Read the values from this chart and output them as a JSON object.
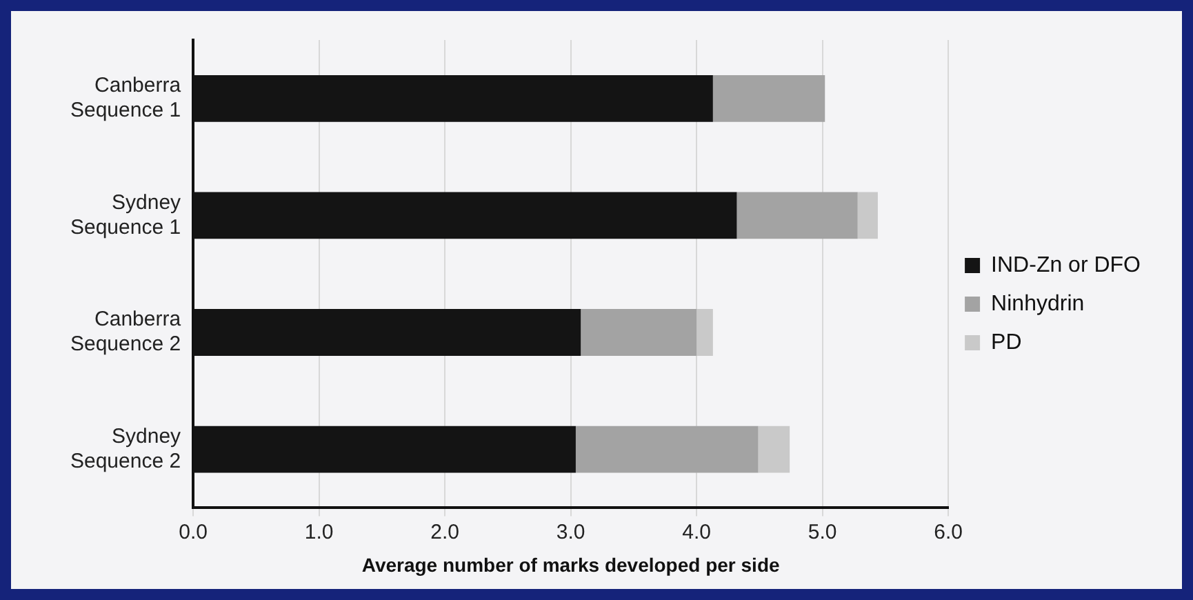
{
  "chart_data": {
    "type": "bar",
    "orientation": "horizontal",
    "stacked": true,
    "xlabel": "Average number of marks developed per side",
    "categories": [
      "Canberra Sequence 1",
      "Sydney Sequence 1",
      "Canberra Sequence 2",
      "Sydney Sequence 2"
    ],
    "series": [
      {
        "name": "IND-Zn or DFO",
        "color": "#141414",
        "values": [
          4.13,
          4.32,
          3.08,
          3.04
        ]
      },
      {
        "name": "Ninhydrin",
        "color": "#a3a3a3",
        "values": [
          0.89,
          0.96,
          0.92,
          1.45
        ]
      },
      {
        "name": "PD",
        "color": "#c9c9c9",
        "values": [
          0,
          0.16,
          0.13,
          0.25
        ]
      }
    ],
    "xlim": [
      0,
      6
    ],
    "xticks": [
      {
        "value": 0,
        "label": "0.0"
      },
      {
        "value": 1,
        "label": "1.0"
      },
      {
        "value": 2,
        "label": "2.0"
      },
      {
        "value": 3,
        "label": "3.0"
      },
      {
        "value": 4,
        "label": "4.0"
      },
      {
        "value": 5,
        "label": "5.0"
      },
      {
        "value": 6,
        "label": "6.0"
      }
    ],
    "grid": "x",
    "legend": "right"
  }
}
